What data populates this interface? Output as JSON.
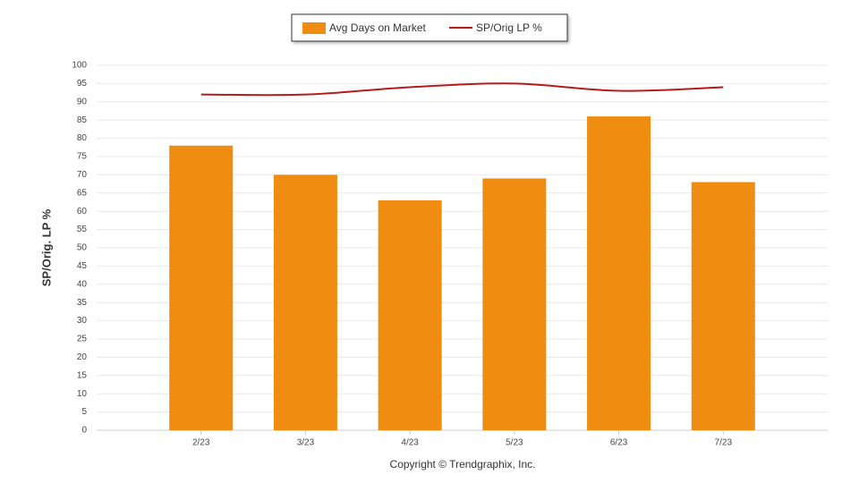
{
  "chart_data": {
    "type": "combo",
    "y_label": "SP/Orig. LP %",
    "x_label": "Copyright © Trendgraphix, Inc.",
    "categories": [
      "2/23",
      "3/23",
      "4/23",
      "5/23",
      "6/23",
      "7/23"
    ],
    "series": [
      {
        "name": "Avg Days on Market",
        "type": "bar",
        "color": "#ef8c12",
        "values": [
          78,
          70,
          63,
          69,
          86,
          68
        ]
      },
      {
        "name": "SP/Orig LP %",
        "type": "line",
        "color": "#b51b1b",
        "values": [
          92,
          92,
          94,
          95,
          93,
          94
        ]
      }
    ],
    "ylim": [
      0,
      100
    ],
    "yticks": [
      0,
      5,
      10,
      15,
      20,
      25,
      30,
      35,
      40,
      45,
      50,
      55,
      60,
      65,
      70,
      75,
      80,
      85,
      90,
      95,
      100
    ],
    "grid": true,
    "legend": "top"
  }
}
